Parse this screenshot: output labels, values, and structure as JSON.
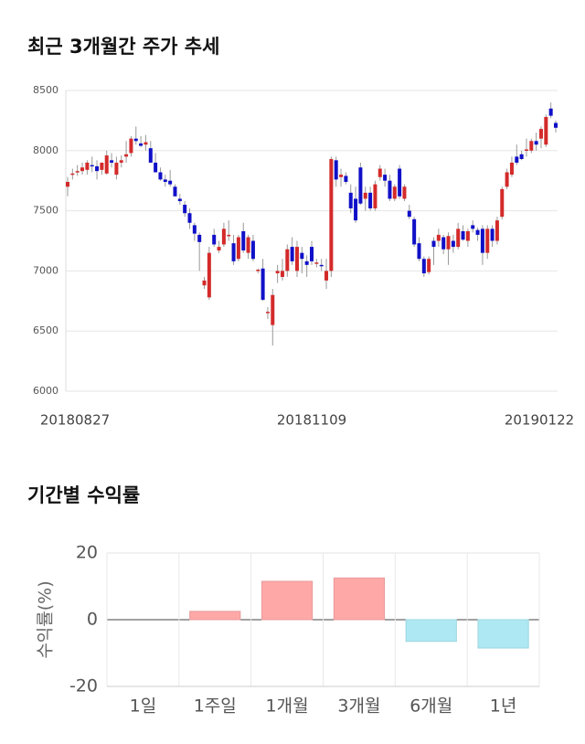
{
  "chart_data": [
    {
      "type": "candlestick",
      "title": "최근 3개월간 주가 추세",
      "categories": [
        "20180827",
        null,
        null,
        null,
        null,
        null,
        null,
        null,
        null,
        null,
        null,
        null,
        null,
        null,
        null,
        null,
        null,
        null,
        null,
        null,
        null,
        null,
        null,
        null,
        null,
        null,
        null,
        null,
        null,
        null,
        null,
        null,
        null,
        null,
        null,
        null,
        null,
        null,
        null,
        null,
        null,
        null,
        null,
        null,
        null,
        null,
        null,
        null,
        null,
        null,
        "20181109",
        null,
        null,
        null,
        null,
        null,
        null,
        null,
        null,
        null,
        null,
        null,
        null,
        null,
        null,
        null,
        null,
        null,
        null,
        null,
        null,
        null,
        null,
        null,
        null,
        null,
        null,
        null,
        null,
        null,
        null,
        null,
        null,
        null,
        null,
        null,
        null,
        null,
        null,
        null,
        null,
        null,
        null,
        null,
        null,
        null,
        null,
        "20190122",
        null,
        null,
        null
      ],
      "ohlc": [
        [
          7700,
          7780,
          7620,
          7740
        ],
        [
          7800,
          7850,
          7760,
          7810
        ],
        [
          7820,
          7880,
          7790,
          7830
        ],
        [
          7830,
          7900,
          7800,
          7860
        ],
        [
          7840,
          7920,
          7800,
          7900
        ],
        [
          7880,
          7950,
          7820,
          7870
        ],
        [
          7870,
          7920,
          7760,
          7830
        ],
        [
          7840,
          7900,
          7800,
          7900
        ],
        [
          7810,
          8000,
          7800,
          7960
        ],
        [
          7920,
          7980,
          7860,
          7900
        ],
        [
          7800,
          7950,
          7760,
          7900
        ],
        [
          7900,
          7960,
          7860,
          7920
        ],
        [
          7950,
          8080,
          7900,
          7970
        ],
        [
          7980,
          8120,
          7950,
          8100
        ],
        [
          8100,
          8200,
          8050,
          8080
        ],
        [
          8060,
          8120,
          8030,
          8040
        ],
        [
          8050,
          8130,
          8000,
          8070
        ],
        [
          8020,
          8080,
          7900,
          7900
        ],
        [
          7900,
          7980,
          7820,
          7820
        ],
        [
          7820,
          7860,
          7750,
          7760
        ],
        [
          7760,
          7800,
          7700,
          7740
        ],
        [
          7750,
          7840,
          7700,
          7720
        ],
        [
          7700,
          7720,
          7620,
          7620
        ],
        [
          7600,
          7640,
          7550,
          7580
        ],
        [
          7550,
          7580,
          7450,
          7480
        ],
        [
          7480,
          7520,
          7350,
          7400
        ],
        [
          7380,
          7400,
          7250,
          7310
        ],
        [
          7300,
          7320,
          7000,
          7240
        ],
        [
          6880,
          6950,
          6850,
          6920
        ],
        [
          6780,
          7200,
          6760,
          7150
        ],
        [
          7300,
          7350,
          7200,
          7220
        ],
        [
          7170,
          7250,
          7150,
          7200
        ],
        [
          7220,
          7400,
          7200,
          7350
        ],
        [
          7300,
          7420,
          7250,
          7300
        ],
        [
          7230,
          7300,
          7050,
          7080
        ],
        [
          7100,
          7300,
          7080,
          7280
        ],
        [
          7330,
          7400,
          7150,
          7170
        ],
        [
          7150,
          7300,
          7100,
          7280
        ],
        [
          7250,
          7300,
          7080,
          7100
        ],
        [
          7000,
          7020,
          6980,
          7010
        ],
        [
          7020,
          7100,
          6750,
          6760
        ],
        [
          6650,
          6700,
          6600,
          6660
        ],
        [
          6550,
          6850,
          6380,
          6800
        ],
        [
          6980,
          7050,
          6900,
          7000
        ],
        [
          6950,
          7100,
          6920,
          7000
        ],
        [
          7000,
          7220,
          6950,
          7180
        ],
        [
          7200,
          7280,
          7050,
          7080
        ],
        [
          7000,
          7250,
          6950,
          7200
        ],
        [
          7150,
          7200,
          6980,
          7100
        ],
        [
          7080,
          7130,
          6950,
          7050
        ],
        [
          7200,
          7250,
          7050,
          7080
        ],
        [
          7060,
          7100,
          7030,
          7070
        ],
        [
          7050,
          7100,
          7000,
          7040
        ],
        [
          6920,
          7100,
          6850,
          7000
        ],
        [
          7000,
          7950,
          6950,
          7930
        ],
        [
          7920,
          7950,
          7700,
          7760
        ],
        [
          7780,
          7850,
          7700,
          7800
        ],
        [
          7790,
          7820,
          7720,
          7740
        ],
        [
          7650,
          7720,
          7480,
          7520
        ],
        [
          7600,
          7700,
          7400,
          7420
        ],
        [
          7860,
          7900,
          7550,
          7560
        ],
        [
          7600,
          7700,
          7500,
          7650
        ],
        [
          7650,
          7700,
          7500,
          7520
        ],
        [
          7520,
          7750,
          7500,
          7720
        ],
        [
          7780,
          7880,
          7750,
          7850
        ],
        [
          7800,
          7850,
          7700,
          7750
        ],
        [
          7750,
          7800,
          7580,
          7600
        ],
        [
          7600,
          7720,
          7580,
          7700
        ],
        [
          7850,
          7880,
          7600,
          7620
        ],
        [
          7600,
          7720,
          7580,
          7700
        ],
        [
          7500,
          7550,
          7430,
          7450
        ],
        [
          7430,
          7450,
          7200,
          7220
        ],
        [
          7230,
          7280,
          7080,
          7100
        ],
        [
          7100,
          7120,
          6950,
          6980
        ],
        [
          6990,
          7120,
          6970,
          7100
        ],
        [
          7250,
          7280,
          7050,
          7200
        ],
        [
          7250,
          7350,
          7200,
          7300
        ],
        [
          7280,
          7300,
          7140,
          7180
        ],
        [
          7180,
          7320,
          7050,
          7290
        ],
        [
          7250,
          7300,
          7150,
          7200
        ],
        [
          7200,
          7400,
          7180,
          7350
        ],
        [
          7330,
          7380,
          7250,
          7260
        ],
        [
          7250,
          7350,
          7200,
          7330
        ],
        [
          7380,
          7420,
          7320,
          7350
        ],
        [
          7340,
          7360,
          7250,
          7300
        ],
        [
          7350,
          7380,
          7050,
          7150
        ],
        [
          7150,
          7380,
          7100,
          7350
        ],
        [
          7350,
          7380,
          7200,
          7250
        ],
        [
          7250,
          7450,
          7220,
          7420
        ],
        [
          7450,
          7700,
          7430,
          7680
        ],
        [
          7700,
          7850,
          7680,
          7820
        ],
        [
          7800,
          7950,
          7780,
          7900
        ],
        [
          7950,
          8050,
          7880,
          7900
        ],
        [
          7970,
          8000,
          7920,
          7930
        ],
        [
          8000,
          8100,
          7950,
          8010
        ],
        [
          8000,
          8100,
          7980,
          8080
        ],
        [
          8080,
          8150,
          8000,
          8050
        ],
        [
          8100,
          8200,
          8020,
          8180
        ],
        [
          8050,
          8300,
          8030,
          8280
        ],
        [
          8350,
          8400,
          8270,
          8290
        ],
        [
          8230,
          8250,
          8150,
          8190
        ]
      ],
      "up_color": "#d42a2a",
      "down_color": "#1010c8",
      "ylim": [
        6000,
        8500
      ],
      "yticks": [
        6000,
        6500,
        7000,
        7500,
        8000,
        8500
      ],
      "grid": true
    },
    {
      "type": "bar",
      "title": "기간별 수익률",
      "ylabel": "수익률(%)",
      "categories": [
        "1일",
        "1주일",
        "1개월",
        "3개월",
        "6개월",
        "1년"
      ],
      "values": [
        0,
        2.5,
        11.5,
        12.5,
        -6.5,
        -8.5
      ],
      "positive_color": "#ffa8a8",
      "negative_color": "#aee9f3",
      "ylim": [
        -20,
        20
      ],
      "yticks": [
        -20,
        0,
        20
      ],
      "grid": true
    }
  ]
}
